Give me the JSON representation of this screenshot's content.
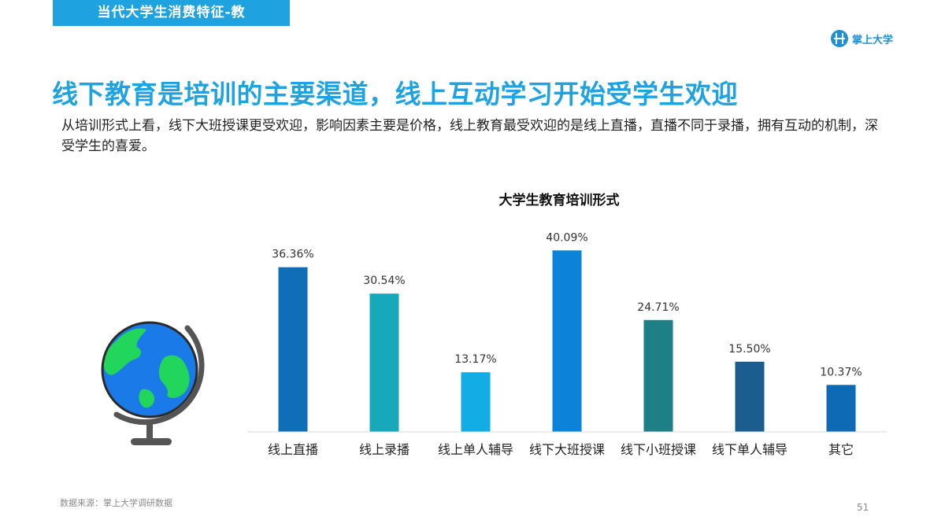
{
  "header": {
    "section_tab": "当代大学生消费特征-教",
    "logo_text": "掌上大学"
  },
  "headline": "线下教育是培训的主要渠道，线上互动学习开始受学生欢迎",
  "intro": "从培训形式上看，线下大班授课更受欢迎，影响因素主要是价格，线上教育最受欢迎的是线上直播，直播不同于录播，拥有互动的机制，深受学生的喜爱。",
  "chart_data": {
    "type": "bar",
    "title": "大学生教育培训形式",
    "categories": [
      "线上直播",
      "线上录播",
      "线上单人辅导",
      "线下大班授课",
      "线下小班授课",
      "线下单人辅导",
      "其它"
    ],
    "values": [
      36.36,
      30.54,
      13.17,
      40.09,
      24.71,
      15.5,
      10.37
    ],
    "value_labels": [
      "36.36%",
      "30.54%",
      "13.17%",
      "40.09%",
      "24.71%",
      "15.50%",
      "10.37%"
    ],
    "bar_colors": [
      "#0e6eb8",
      "#17a8ba",
      "#12ade4",
      "#0a84d9",
      "#1e7f86",
      "#1b5d8e",
      "#0f6ab5"
    ],
    "unit": "%",
    "ylim": [
      0,
      45
    ],
    "grid": false,
    "legend": "none"
  },
  "illustration": {
    "icon": "globe-icon",
    "ocean_color": "#1a7ae8",
    "land_color": "#22d65c",
    "stand_color": "#555555"
  },
  "footer": {
    "source": "数据来源：掌上大学调研数据",
    "page_number": "51"
  },
  "colors": {
    "accent": "#1fa3e0",
    "brand": "#1f8fd6"
  }
}
